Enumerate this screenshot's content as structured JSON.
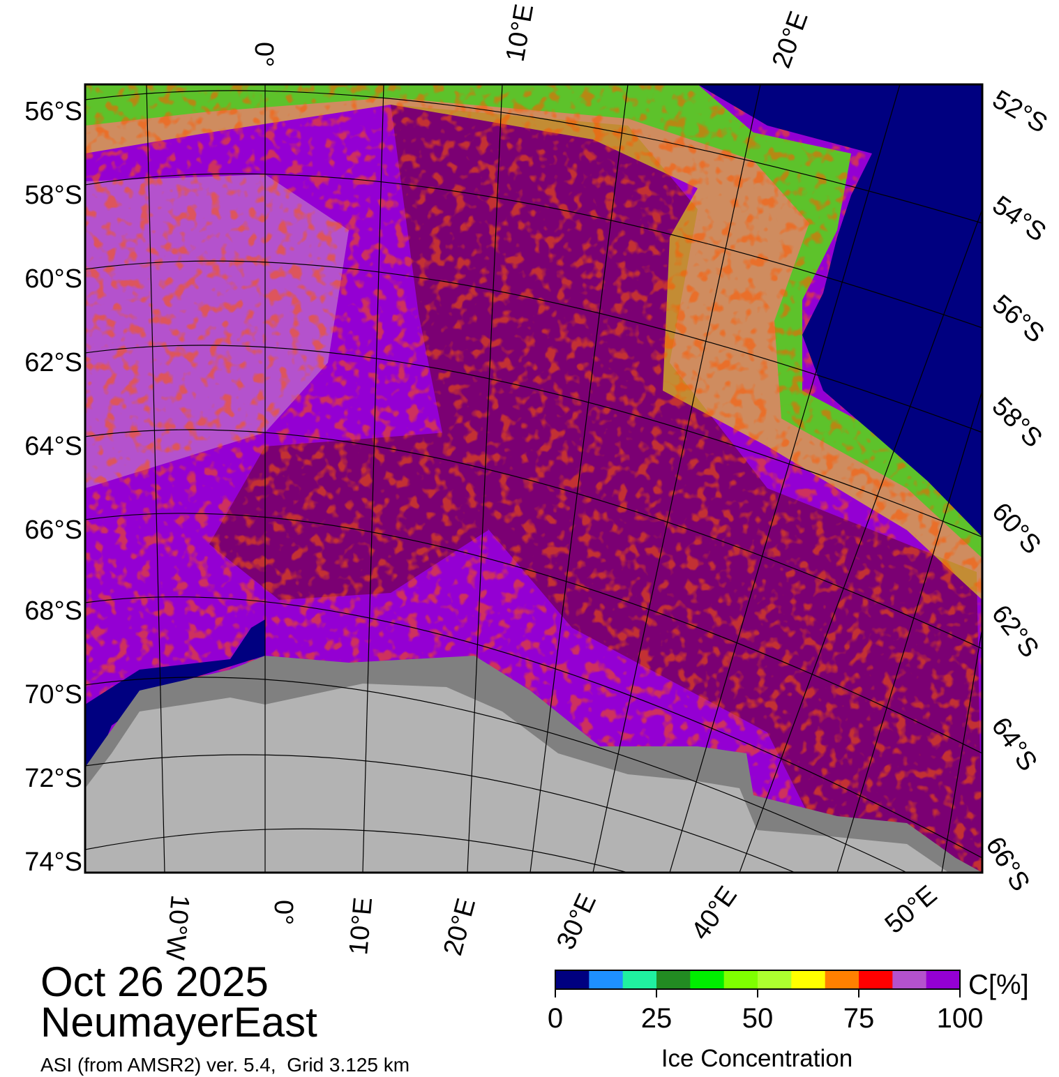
{
  "map": {
    "date": "Oct 26 2025",
    "region": "NeumayerEast",
    "product": "ASI (from AMSR2) ver. 5.4,  Grid 3.125 km",
    "colors": {
      "open_water": "#000080",
      "land": "#b3b3b3",
      "ice_shelf": "#808080",
      "high_ice": "#7b0073",
      "frame": "#000000"
    },
    "left_lat_labels": [
      "56°S",
      "58°S",
      "60°S",
      "62°S",
      "64°S",
      "66°S",
      "68°S",
      "70°S",
      "72°S",
      "74°S"
    ],
    "right_lat_labels": [
      "52°S",
      "54°S",
      "56°S",
      "58°S",
      "60°S",
      "62°S",
      "64°S",
      "66°S"
    ],
    "top_lon_labels": [
      "0°",
      "10°E",
      "20°E"
    ],
    "bottom_lon_labels": [
      "10°W",
      "0°",
      "10°E",
      "20°E",
      "30°E",
      "40°E",
      "50°E"
    ]
  },
  "colorbar": {
    "unit_label": "C[%]",
    "title": "Ice Concentration",
    "ticks": [
      "0",
      "25",
      "50",
      "75",
      "100"
    ],
    "range": [
      0,
      100
    ],
    "colors": [
      "#000080",
      "#1e90ff",
      "#20f0a0",
      "#228b22",
      "#00ee00",
      "#7fff00",
      "#adff2f",
      "#ffff00",
      "#ff8000",
      "#ff0000",
      "#b452cd",
      "#9400d3"
    ]
  }
}
